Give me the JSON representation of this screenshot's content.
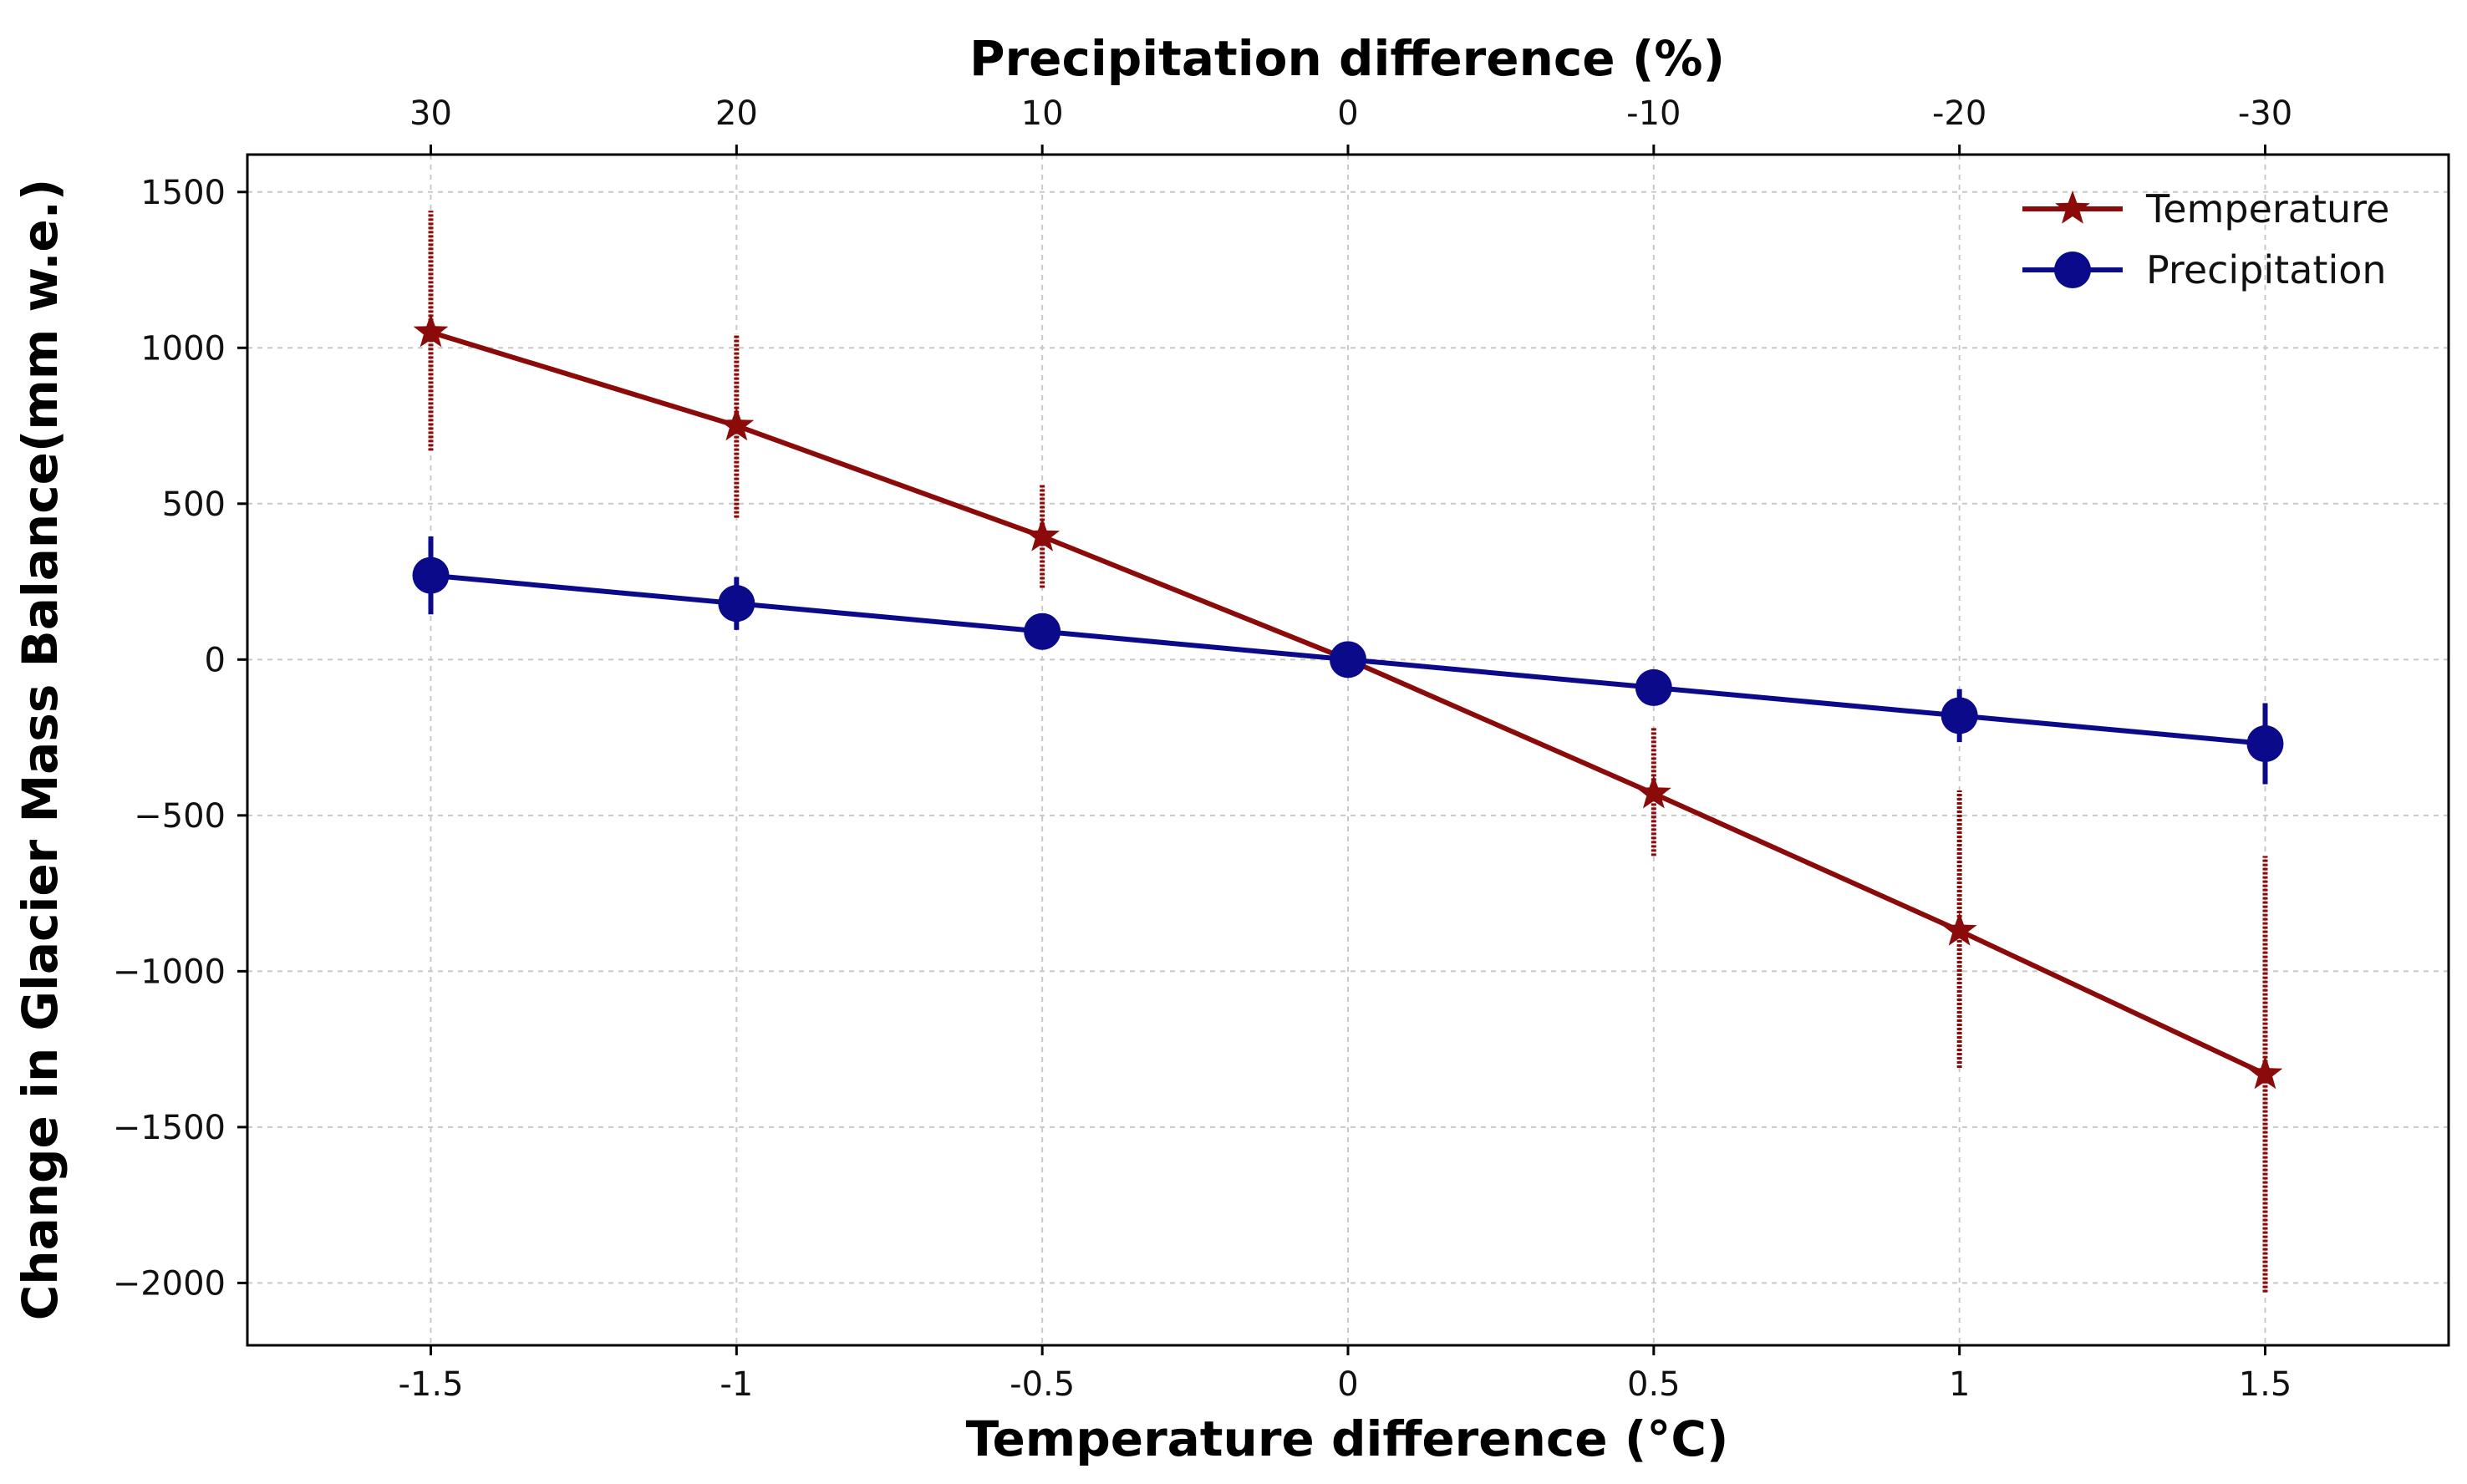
{
  "chart_data": {
    "type": "line",
    "title": "",
    "xlabel": "Temperature difference (°C)",
    "x2label": "Precipitation difference (%)",
    "ylabel": "Change in Glacier Mass Balance(mm w.e.)",
    "xlim": [
      -1.8,
      1.8
    ],
    "ylim": [
      -2200,
      1620
    ],
    "x_ticks": [
      -1.5,
      -1,
      -0.5,
      0,
      0.5,
      1,
      1.5
    ],
    "x_tick_labels": [
      "-1.5",
      "-1",
      "-0.5",
      "0",
      "0.5",
      "1",
      "1.5"
    ],
    "x2_tick_labels": [
      "30",
      "20",
      "10",
      "0",
      "-10",
      "-20",
      "-30"
    ],
    "y_ticks": [
      1500,
      1000,
      500,
      0,
      -500,
      -1000,
      -1500,
      -2000
    ],
    "y_tick_labels": [
      "1500",
      "1000",
      "500",
      "0",
      "−500",
      "−1000",
      "−1500",
      "−2000"
    ],
    "grid": true,
    "legend_position": "top-right",
    "series": [
      {
        "name": "Temperature",
        "color": "#8b0a0a",
        "marker": "star",
        "x": [
          -1.5,
          -1,
          -0.5,
          0,
          0.5,
          1,
          1.5
        ],
        "y": [
          1050,
          750,
          395,
          0,
          -430,
          -870,
          -1330
        ],
        "error_low": [
          670,
          455,
          230,
          0,
          -630,
          -1310,
          -2030
        ],
        "error_high": [
          1440,
          1045,
          565,
          0,
          -220,
          -420,
          -630
        ]
      },
      {
        "name": "Precipitation",
        "color": "#0a0a8b",
        "marker": "circle",
        "x": [
          -1.5,
          -1,
          -0.5,
          0,
          0.5,
          1,
          1.5
        ],
        "y": [
          270,
          180,
          90,
          0,
          -90,
          -180,
          -270
        ],
        "error_low": [
          145,
          95,
          90,
          0,
          -90,
          -265,
          -400
        ],
        "error_high": [
          395,
          265,
          90,
          0,
          -90,
          -95,
          -140
        ]
      }
    ]
  }
}
